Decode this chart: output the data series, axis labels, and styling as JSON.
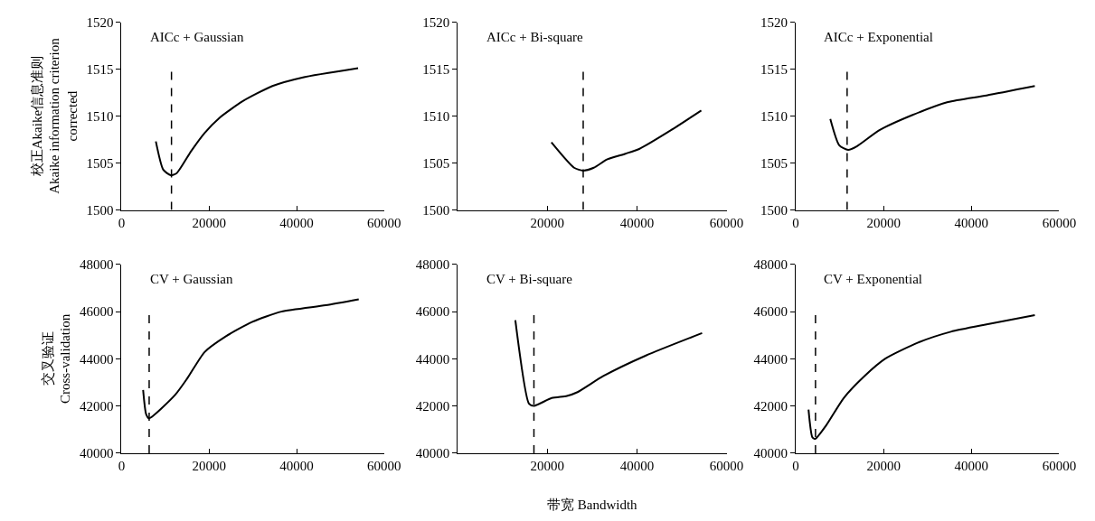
{
  "chart_data": [
    {
      "type": "line",
      "title": "AICc + Gaussian",
      "ylabel": "校正Akaike信息准则\nAkaike information criterion\ncorrected",
      "x": [
        7830,
        9510,
        11200,
        12550,
        15930,
        18960,
        22330,
        27730,
        34470,
        41230,
        54050
      ],
      "values": [
        1507.3,
        1504.3,
        1503.7,
        1503.9,
        1506.3,
        1508.2,
        1509.8,
        1511.6,
        1513.2,
        1514.1,
        1515.1
      ],
      "color": "#000000",
      "xlim": [
        0,
        60000
      ],
      "xticks": [
        0,
        20000,
        40000,
        60000
      ],
      "ylim": [
        1500,
        1520
      ],
      "yticks": [
        1500,
        1505,
        1510,
        1515,
        1520
      ],
      "ref_lines": [
        {
          "axis": "x",
          "value": 11400,
          "color": "#000000",
          "line_style": "dashed"
        }
      ],
      "marker": "none",
      "line_style": "solid"
    },
    {
      "type": "line",
      "title": "AICc + Bi-square",
      "x": [
        20900,
        25960,
        27990,
        30360,
        33400,
        37460,
        40500,
        47600,
        54360
      ],
      "values": [
        1507.2,
        1504.5,
        1504.2,
        1504.5,
        1505.4,
        1506.0,
        1506.5,
        1508.5,
        1510.6
      ],
      "color": "#000000",
      "xlim": [
        0,
        60000
      ],
      "xticks": [
        20000,
        40000,
        60000
      ],
      "ylim": [
        1500,
        1520
      ],
      "yticks": [
        1500,
        1505,
        1510,
        1515,
        1520
      ],
      "ref_lines": [
        {
          "axis": "x",
          "value": 28000,
          "color": "#000000",
          "line_style": "dashed"
        }
      ],
      "marker": "none",
      "line_style": "solid"
    },
    {
      "type": "line",
      "title": "AICc + Exponential",
      "x": [
        7870,
        9900,
        11940,
        13980,
        19060,
        26510,
        34650,
        43460,
        54450
      ],
      "values": [
        1509.7,
        1506.9,
        1506.4,
        1506.8,
        1508.5,
        1510.1,
        1511.5,
        1512.2,
        1513.2
      ],
      "color": "#000000",
      "xlim": [
        0,
        60000
      ],
      "xticks": [
        0,
        20000,
        40000,
        60000
      ],
      "ylim": [
        1500,
        1520
      ],
      "yticks": [
        1500,
        1505,
        1510,
        1515,
        1520
      ],
      "ref_lines": [
        {
          "axis": "x",
          "value": 11700,
          "color": "#000000",
          "line_style": "dashed"
        }
      ],
      "marker": "none",
      "line_style": "solid"
    },
    {
      "type": "line",
      "title": "CV + Gaussian",
      "ylabel": "交叉验证\nCross-validation",
      "x": [
        4920,
        5600,
        6280,
        12220,
        14930,
        18980,
        23700,
        29780,
        36500,
        46620,
        54190
      ],
      "values": [
        42680,
        41660,
        41480,
        42470,
        43150,
        44290,
        44940,
        45560,
        46000,
        46270,
        46520
      ],
      "color": "#000000",
      "xlim": [
        0,
        60000
      ],
      "xticks": [
        0,
        20000,
        40000,
        60000
      ],
      "ylim": [
        40000,
        48000
      ],
      "yticks": [
        40000,
        42000,
        44000,
        46000,
        48000
      ],
      "ref_lines": [
        {
          "axis": "x",
          "value": 6300,
          "color": "#000000",
          "line_style": "dashed"
        }
      ],
      "marker": "none",
      "line_style": "solid"
    },
    {
      "type": "line",
      "title": "CV + Bi-square",
      "xlabel": "带宽 Bandwidth",
      "x": [
        12850,
        15900,
        17040,
        20980,
        24370,
        26750,
        32500,
        42000,
        54540
      ],
      "values": [
        45640,
        42100,
        42010,
        42340,
        42430,
        42590,
        43270,
        44140,
        45090
      ],
      "color": "#000000",
      "xlim": [
        0,
        60000
      ],
      "xticks": [
        20000,
        40000,
        60000
      ],
      "ylim": [
        40000,
        48000
      ],
      "yticks": [
        40000,
        42000,
        44000,
        46000,
        48000
      ],
      "ref_lines": [
        {
          "axis": "x",
          "value": 17000,
          "color": "#000000",
          "line_style": "dashed"
        }
      ],
      "marker": "none",
      "line_style": "solid"
    },
    {
      "type": "line",
      "title": "CV + Exponential",
      "x": [
        2910,
        3800,
        4480,
        6860,
        10930,
        15660,
        20410,
        27870,
        35330,
        43460,
        54450
      ],
      "values": [
        41850,
        40670,
        40610,
        41160,
        42340,
        43270,
        44010,
        44690,
        45150,
        45460,
        45850
      ],
      "color": "#000000",
      "xlim": [
        0,
        60000
      ],
      "xticks": [
        0,
        20000,
        40000,
        60000
      ],
      "ylim": [
        40000,
        48000
      ],
      "yticks": [
        40000,
        42000,
        44000,
        46000,
        48000
      ],
      "ref_lines": [
        {
          "axis": "x",
          "value": 4500,
          "color": "#000000",
          "line_style": "dashed"
        }
      ],
      "marker": "none",
      "line_style": "solid"
    }
  ]
}
